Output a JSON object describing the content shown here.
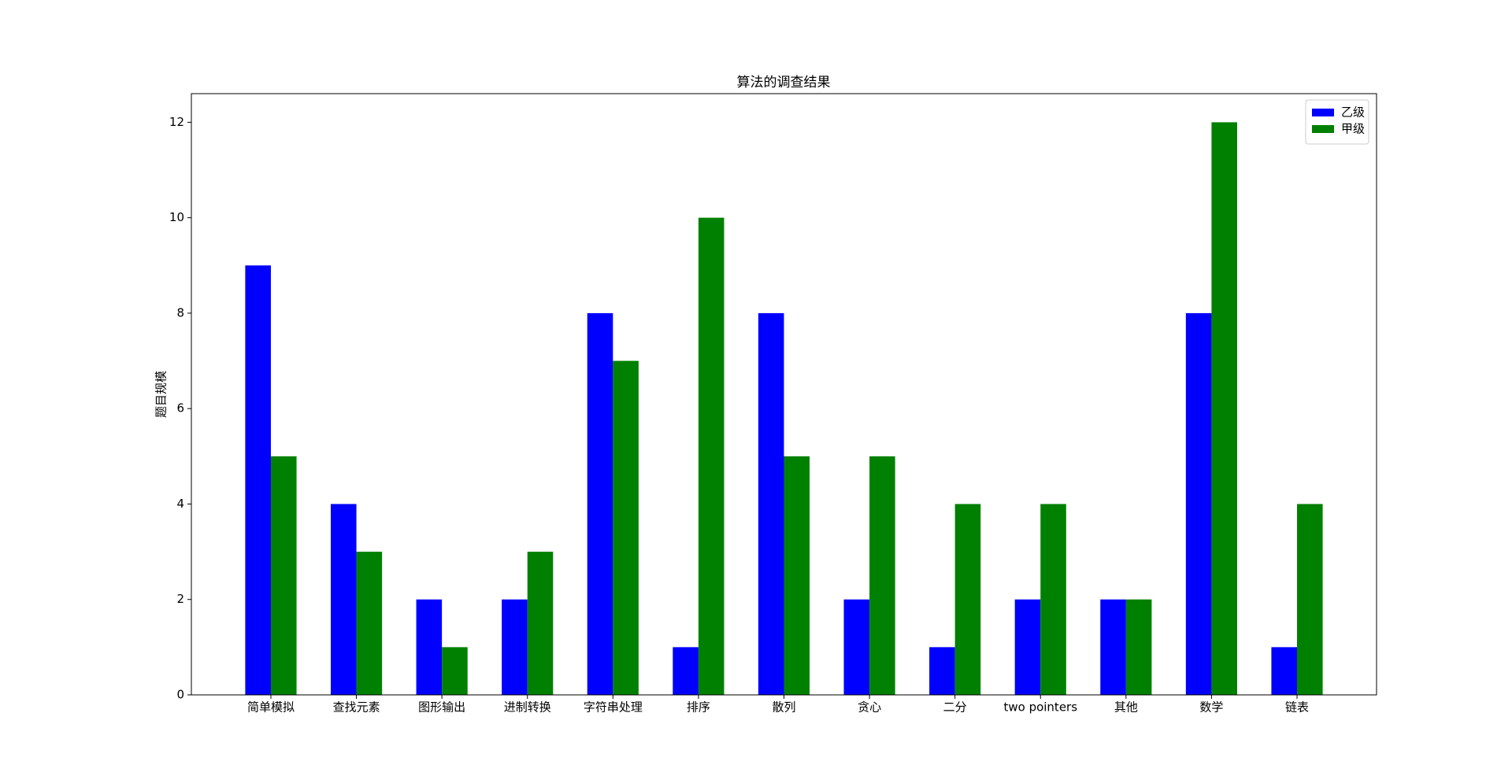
{
  "chart_data": {
    "type": "bar",
    "title": "算法的调查结果",
    "y_label": "题目规模",
    "categories": [
      "简单模拟",
      "查找元素",
      "图形输出",
      "进制转换",
      "字符串处理",
      "排序",
      "散列",
      "贪心",
      "二分",
      "two pointers",
      "其他",
      "数学",
      "链表"
    ],
    "series": [
      {
        "name": "乙级",
        "color": "#0000ff",
        "values": [
          9,
          4,
          2,
          2,
          8,
          1,
          8,
          2,
          1,
          2,
          2,
          8,
          1
        ]
      },
      {
        "name": "甲级",
        "color": "#008000",
        "values": [
          5,
          3,
          1,
          3,
          7,
          10,
          5,
          5,
          4,
          4,
          2,
          12,
          4
        ]
      }
    ],
    "ylim": [
      0,
      12.6
    ],
    "yticks": [
      0,
      2,
      4,
      6,
      8,
      10,
      12
    ],
    "legend": "upper right",
    "grid": false
  }
}
